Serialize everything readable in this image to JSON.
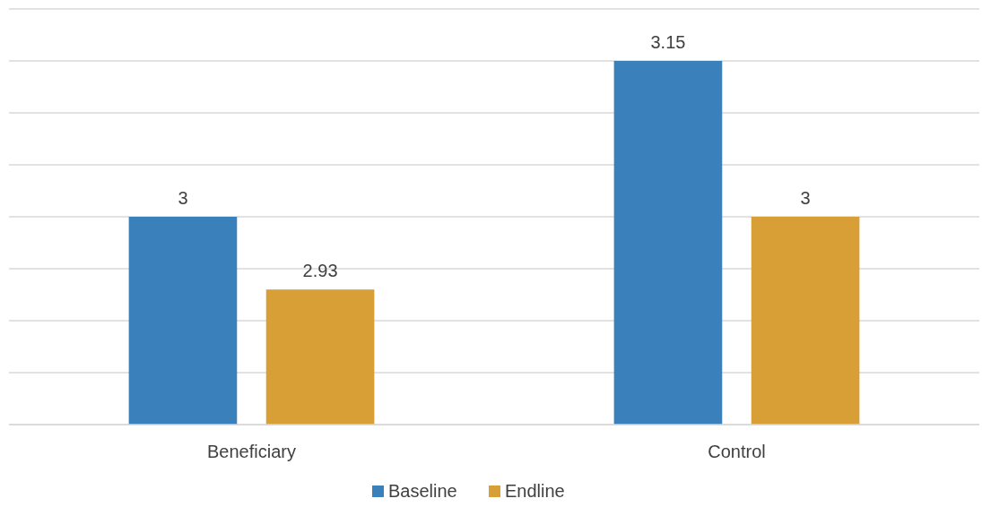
{
  "chart_data": {
    "type": "bar",
    "categories": [
      "Beneficiary",
      "Control"
    ],
    "series": [
      {
        "name": "Baseline",
        "color": "#3a80ba",
        "values": [
          3,
          3.15
        ]
      },
      {
        "name": "Endline",
        "color": "#d89f37",
        "values": [
          2.93,
          3
        ]
      }
    ],
    "ylim": [
      2.8,
      3.2
    ],
    "yticks": [
      {
        "value": 2.8,
        "label": null
      },
      {
        "value": 2.85,
        "label": null
      },
      {
        "value": 2.9,
        "label": null
      },
      {
        "value": 2.95,
        "label": null
      },
      {
        "value": 3,
        "label": null
      },
      {
        "value": 3.05,
        "label": null
      },
      {
        "value": 3.1,
        "label": null
      },
      {
        "value": 3.15,
        "label": null
      },
      {
        "value": 3.2,
        "label": null
      }
    ],
    "tick_labels": "x",
    "grid": "y",
    "data_labels": true,
    "legend": "bottom"
  }
}
